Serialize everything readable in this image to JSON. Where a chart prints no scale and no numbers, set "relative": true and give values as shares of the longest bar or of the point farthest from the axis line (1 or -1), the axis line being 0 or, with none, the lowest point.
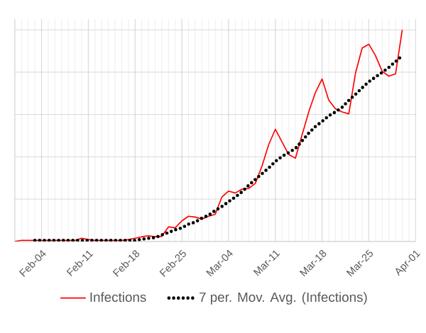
{
  "chart_data": {
    "type": "line",
    "relative": true,
    "grid": true,
    "legend": "bottom",
    "marker": "none",
    "categories": [
      null,
      null,
      null,
      null,
      "Feb-04",
      null,
      null,
      null,
      null,
      null,
      null,
      "Feb-11",
      null,
      null,
      null,
      null,
      null,
      null,
      "Feb-18",
      null,
      null,
      null,
      null,
      null,
      null,
      "Feb-25",
      null,
      null,
      null,
      null,
      null,
      null,
      "Mar-04",
      null,
      null,
      null,
      null,
      null,
      null,
      "Mar-11",
      null,
      null,
      null,
      null,
      null,
      null,
      "Mar-18",
      null,
      null,
      null,
      null,
      null,
      null,
      "Mar-25",
      null,
      null,
      null,
      null,
      null,
      null,
      "Apr-01"
    ],
    "series": [
      {
        "name": "Infections",
        "color": "#ff0000",
        "line_style": "solid",
        "values": [
          0,
          0.005,
          0.005,
          0.005,
          0.005,
          0.005,
          0.005,
          0.005,
          0.005,
          0.005,
          0.015,
          0.009,
          0.005,
          0.005,
          0.005,
          0.005,
          0.005,
          0.009,
          0.015,
          0.022,
          0.027,
          0.022,
          0.024,
          0.069,
          0.064,
          0.097,
          0.119,
          0.115,
          0.106,
          0.119,
          0.128,
          0.21,
          0.238,
          0.229,
          0.247,
          0.25,
          0.274,
          0.356,
          0.457,
          0.53,
          0.47,
          0.411,
          0.393,
          0.503,
          0.612,
          0.704,
          0.768,
          0.667,
          0.627,
          0.612,
          0.603,
          0.795,
          0.914,
          0.932,
          0.878,
          0.804,
          0.781,
          0.792,
          1,
          null,
          null
        ]
      },
      {
        "name": "7 per. Mov. Avg. (Infections)",
        "color": "#000000",
        "line_style": "dotted",
        "values": [
          null,
          null,
          null,
          0.005,
          0.005,
          0.005,
          0.005,
          0.005,
          0.005,
          0.005,
          0.005,
          0.005,
          0.005,
          0.005,
          0.005,
          0.005,
          0.005,
          0.005,
          0.005,
          0.01,
          0.015,
          0.018,
          0.031,
          0.042,
          0.055,
          0.064,
          0.082,
          0.091,
          0.11,
          0.124,
          0.146,
          0.165,
          0.188,
          0.21,
          0.234,
          0.265,
          0.293,
          0.32,
          0.347,
          0.378,
          0.402,
          0.42,
          0.439,
          0.475,
          0.512,
          0.543,
          0.567,
          0.594,
          0.612,
          0.634,
          0.667,
          0.695,
          0.726,
          0.755,
          0.777,
          0.799,
          0.823,
          0.85,
          0.878,
          null,
          null
        ]
      }
    ]
  }
}
